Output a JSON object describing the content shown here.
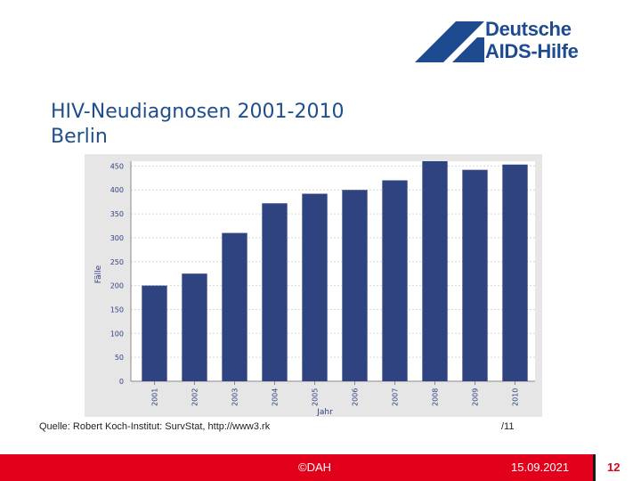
{
  "slide": {
    "title_line1": "HIV-Neudiagnosen 2001-2010",
    "title_line2": "Berlin"
  },
  "logo": {
    "line1": "Deutsche",
    "line2": "AIDS-Hilfe",
    "icon": "dah-slash-logo-icon"
  },
  "colors": {
    "brand_blue": "#1e4b8f",
    "bar_blue": "#2f4381",
    "footer_red": "#e2001a"
  },
  "chart_data": {
    "type": "bar",
    "categories": [
      "2001",
      "2002",
      "2003",
      "2004",
      "2005",
      "2006",
      "2007",
      "2008",
      "2009",
      "2010"
    ],
    "values": [
      200,
      225,
      310,
      372,
      392,
      400,
      420,
      460,
      442,
      453
    ],
    "ylabel": "Fälle",
    "xlabel": "Jahr",
    "ylim": [
      0,
      460
    ],
    "yticks": [
      "0",
      "50",
      "100",
      "150",
      "200",
      "250",
      "300",
      "350",
      "400",
      "450"
    ],
    "grid": true
  },
  "source": {
    "text": "Quelle: Robert Koch-Institut: SurvStat, http://www3.rk",
    "right_text": "/11"
  },
  "footer": {
    "copyright": "©DAH",
    "date": "15.09.2021",
    "page_number": "12"
  }
}
